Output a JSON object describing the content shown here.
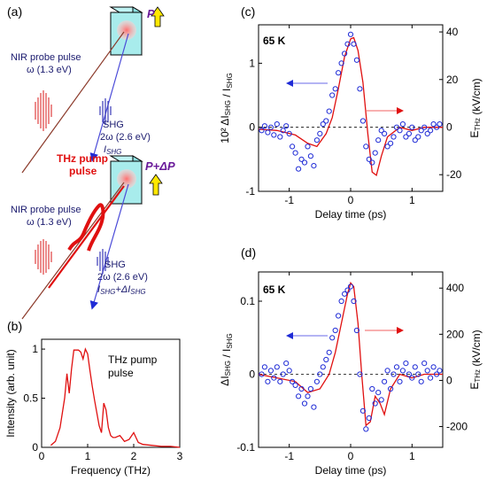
{
  "panels": {
    "a": {
      "label": "(a)",
      "top": {
        "probe_title": "NIR probe pulse",
        "probe_energy": "ω (1.3 eV)",
        "shg_title": "SHG",
        "shg_energy": "2ω (2.6 eV)",
        "shg_intensity": "I",
        "shg_intensity_sub": "SHG",
        "polarization": "P"
      },
      "bottom": {
        "pump_title_1": "THz pump",
        "pump_title_2": "pulse",
        "probe_title": "NIR probe pulse",
        "probe_energy": "ω (1.3 eV)",
        "shg_title": "SHG",
        "shg_energy": "2ω (2.6 eV)",
        "shg_intensity": "I",
        "shg_intensity_sub": "SHG",
        "shg_plus": "+ΔI",
        "shg_plus_sub": "SHG",
        "polarization": "P+ΔP"
      }
    },
    "b": {
      "label": "(b)",
      "annotation_1": "THz pump",
      "annotation_2": "pulse"
    },
    "c": {
      "label": "(c)",
      "temp": "65 K"
    },
    "d": {
      "label": "(d)",
      "temp": "65 K"
    }
  },
  "colors": {
    "data_points": "#1f2bd6",
    "fit_line": "#e01010",
    "dashed_zero": "#000000",
    "arrow_blue": "#6a6ae8",
    "arrow_red": "#f06060"
  },
  "chart_data": [
    {
      "id": "b",
      "type": "line",
      "xlabel": "Frequency (THz)",
      "ylabel": "Intensity (arb. unit)",
      "xlim": [
        0,
        3
      ],
      "ylim": [
        0,
        1.1
      ],
      "xticks": [
        "0",
        "1",
        "2",
        "3"
      ],
      "yticks": [
        "0",
        "0.5",
        "1"
      ],
      "x": [
        0.2,
        0.3,
        0.4,
        0.5,
        0.55,
        0.6,
        0.65,
        0.7,
        0.75,
        0.8,
        0.85,
        0.9,
        0.95,
        1.0,
        1.05,
        1.1,
        1.15,
        1.2,
        1.25,
        1.3,
        1.35,
        1.4,
        1.45,
        1.5,
        1.55,
        1.6,
        1.7,
        1.8,
        1.9,
        2.0,
        2.1,
        2.2,
        2.4,
        2.6,
        2.8,
        3.0
      ],
      "y": [
        0.02,
        0.06,
        0.2,
        0.5,
        0.75,
        0.55,
        0.8,
        0.99,
        0.99,
        0.99,
        0.97,
        0.9,
        1.0,
        0.95,
        0.78,
        0.62,
        0.48,
        0.35,
        0.22,
        0.15,
        0.45,
        0.38,
        0.2,
        0.12,
        0.1,
        0.1,
        0.12,
        0.06,
        0.08,
        0.15,
        0.05,
        0.03,
        0.02,
        0.01,
        0.01,
        0.0
      ]
    },
    {
      "id": "c",
      "type": "scatter+line",
      "xlabel": "Delay time (ps)",
      "ylabel": "10² ΔI_SHG / I_SHG",
      "y2label": "E_THz (kV/cm)",
      "xlim": [
        -1.5,
        1.5
      ],
      "ylim": [
        -1.0,
        1.6
      ],
      "y2lim": [
        -27,
        43
      ],
      "xticks": [
        "-1",
        "0",
        "1"
      ],
      "yticks": [
        "-1",
        "0",
        "1"
      ],
      "y2ticks": [
        "-20",
        "0",
        "20",
        "40"
      ],
      "series": [
        {
          "name": "SHG",
          "style": "points",
          "x": [
            -1.45,
            -1.4,
            -1.35,
            -1.3,
            -1.25,
            -1.2,
            -1.15,
            -1.1,
            -1.05,
            -1.0,
            -0.95,
            -0.9,
            -0.85,
            -0.8,
            -0.75,
            -0.7,
            -0.65,
            -0.6,
            -0.55,
            -0.5,
            -0.45,
            -0.4,
            -0.35,
            -0.3,
            -0.25,
            -0.2,
            -0.15,
            -0.1,
            -0.05,
            0.0,
            0.05,
            0.1,
            0.15,
            0.2,
            0.25,
            0.3,
            0.35,
            0.4,
            0.45,
            0.5,
            0.55,
            0.6,
            0.65,
            0.7,
            0.75,
            0.8,
            0.85,
            0.9,
            0.95,
            1.0,
            1.05,
            1.1,
            1.15,
            1.2,
            1.25,
            1.3,
            1.35,
            1.4,
            1.45
          ],
          "y": [
            -0.05,
            0.02,
            -0.08,
            0.0,
            -0.12,
            0.05,
            -0.15,
            -0.05,
            0.02,
            -0.1,
            -0.3,
            -0.4,
            -0.65,
            -0.5,
            -0.55,
            -0.3,
            -0.45,
            -0.6,
            -0.2,
            -0.1,
            0.05,
            0.1,
            0.25,
            0.5,
            0.6,
            0.85,
            1.0,
            1.15,
            1.3,
            1.45,
            1.3,
            1.05,
            0.6,
            0.1,
            -0.3,
            -0.5,
            -0.55,
            -0.4,
            -0.2,
            -0.05,
            -0.1,
            -0.3,
            -0.25,
            -0.15,
            0.0,
            -0.05,
            0.05,
            -0.15,
            -0.1,
            0.0,
            -0.2,
            -0.15,
            -0.05,
            0.0,
            -0.1,
            -0.05,
            0.05,
            0.0,
            0.05
          ]
        },
        {
          "name": "E_THz",
          "style": "line",
          "x": [
            -1.5,
            -1.2,
            -0.9,
            -0.7,
            -0.55,
            -0.4,
            -0.3,
            -0.2,
            -0.1,
            0.0,
            0.05,
            0.12,
            0.2,
            0.28,
            0.35,
            0.42,
            0.5,
            0.6,
            0.8,
            1.0,
            1.2,
            1.5
          ],
          "y": [
            -0.03,
            -0.05,
            -0.12,
            -0.25,
            -0.3,
            -0.1,
            0.15,
            0.6,
            1.1,
            1.38,
            1.4,
            1.2,
            0.7,
            -0.1,
            -0.7,
            -0.75,
            -0.45,
            -0.15,
            0.0,
            -0.05,
            0.0,
            0.0
          ]
        }
      ]
    },
    {
      "id": "d",
      "type": "scatter+line",
      "xlabel": "Delay time (ps)",
      "ylabel": "ΔI_SHG / I_SHG",
      "y2label": "E_THz (kV/cm)",
      "xlim": [
        -1.5,
        1.5
      ],
      "ylim": [
        -0.1,
        0.14
      ],
      "y2lim": [
        -290,
        470
      ],
      "xticks": [
        "-1",
        "0",
        "1"
      ],
      "yticks": [
        "-0.1",
        "0",
        "0.1"
      ],
      "y2ticks": [
        "-200",
        "0",
        "200",
        "400"
      ],
      "series": [
        {
          "name": "SHG",
          "style": "points",
          "x": [
            -1.45,
            -1.4,
            -1.35,
            -1.3,
            -1.25,
            -1.2,
            -1.15,
            -1.1,
            -1.05,
            -1.0,
            -0.95,
            -0.9,
            -0.85,
            -0.8,
            -0.75,
            -0.7,
            -0.65,
            -0.6,
            -0.55,
            -0.5,
            -0.45,
            -0.4,
            -0.35,
            -0.3,
            -0.25,
            -0.2,
            -0.15,
            -0.1,
            -0.05,
            0.0,
            0.05,
            0.1,
            0.15,
            0.2,
            0.25,
            0.3,
            0.35,
            0.4,
            0.45,
            0.5,
            0.55,
            0.6,
            0.65,
            0.7,
            0.75,
            0.8,
            0.85,
            0.9,
            0.95,
            1.0,
            1.05,
            1.1,
            1.15,
            1.2,
            1.25,
            1.3,
            1.35,
            1.4,
            1.45
          ],
          "y": [
            0.0,
            0.01,
            -0.01,
            0.005,
            -0.005,
            0.01,
            -0.01,
            0.0,
            0.015,
            0.005,
            -0.01,
            -0.015,
            -0.03,
            -0.02,
            -0.04,
            -0.03,
            -0.02,
            -0.045,
            -0.01,
            0.0,
            0.01,
            0.02,
            0.03,
            0.05,
            0.06,
            0.08,
            0.1,
            0.11,
            0.115,
            0.12,
            0.1,
            0.06,
            0.0,
            -0.05,
            -0.075,
            -0.06,
            -0.02,
            -0.04,
            -0.025,
            -0.035,
            -0.01,
            0.005,
            -0.02,
            0.0,
            0.01,
            -0.01,
            0.005,
            0.015,
            0.0,
            -0.005,
            0.01,
            0.0,
            -0.01,
            0.015,
            0.005,
            -0.005,
            0.01,
            0.0,
            0.005
          ]
        },
        {
          "name": "E_THz",
          "style": "line",
          "x": [
            -1.5,
            -1.2,
            -0.9,
            -0.7,
            -0.5,
            -0.35,
            -0.25,
            -0.15,
            -0.05,
            0.0,
            0.05,
            0.12,
            0.18,
            0.25,
            0.32,
            0.4,
            0.48,
            0.55,
            0.65,
            0.8,
            1.0,
            1.2,
            1.5
          ],
          "y": [
            0.0,
            -0.005,
            -0.01,
            -0.025,
            -0.02,
            0.0,
            0.03,
            0.07,
            0.11,
            0.125,
            0.12,
            0.07,
            0.0,
            -0.07,
            -0.065,
            -0.03,
            -0.04,
            -0.055,
            -0.02,
            0.0,
            -0.005,
            0.0,
            0.0
          ]
        }
      ]
    }
  ]
}
